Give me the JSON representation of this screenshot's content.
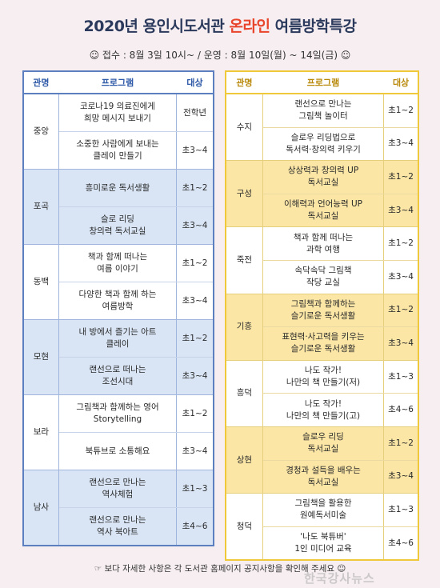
{
  "title": {
    "part1": "2020년 용인시도서관 ",
    "highlight": "온라인",
    "part2": " 여름방학특강"
  },
  "subtitle": "☺ 접수 : 8월 3일 10시~ / 운영 : 8월 10일(월) ~ 14일(금) ☺",
  "headers": {
    "library": "관명",
    "program": "프로그램",
    "target": "대상"
  },
  "left": [
    {
      "lib": "중앙",
      "programs": [
        {
          "name": "코로나19 의료진에게\n희망 메시지 보내기",
          "target": "전학년"
        },
        {
          "name": "소중한 사람에게 보내는\n클레이 만들기",
          "target": "초3~4"
        }
      ]
    },
    {
      "lib": "포곡",
      "programs": [
        {
          "name": "흥미로운 독서생활",
          "target": "초1~2"
        },
        {
          "name": "슬로 리딩\n창의력 독서교실",
          "target": "초3~4"
        }
      ]
    },
    {
      "lib": "동백",
      "programs": [
        {
          "name": "책과 함께 떠나는\n여름 이야기",
          "target": "초1~2"
        },
        {
          "name": "다양한 책과 함께 하는\n여름방학",
          "target": "초3~4"
        }
      ]
    },
    {
      "lib": "모현",
      "programs": [
        {
          "name": "내 방에서 즐기는 아트\n클레이",
          "target": "초1~2"
        },
        {
          "name": "랜선으로 떠나는\n조선시대",
          "target": "초3~4"
        }
      ]
    },
    {
      "lib": "보라",
      "programs": [
        {
          "name": "그림책과 함께하는 영어\nStorytelling",
          "target": "초1~2"
        },
        {
          "name": "북튜브로 소통해요",
          "target": "초3~4"
        }
      ]
    },
    {
      "lib": "남사",
      "programs": [
        {
          "name": "랜선으로 만나는\n역사체험",
          "target": "초1~3"
        },
        {
          "name": "랜선으로 만나는\n역사 북아트",
          "target": "초4~6"
        }
      ]
    }
  ],
  "right": [
    {
      "lib": "수지",
      "programs": [
        {
          "name": "랜선으로 만나는\n그림책 놀이터",
          "target": "초1~2"
        },
        {
          "name": "슬로우 리딩법으로\n독서력·창의력 키우기",
          "target": "초3~4"
        }
      ]
    },
    {
      "lib": "구성",
      "programs": [
        {
          "name": "상상력과 창의력 UP\n독서교실",
          "target": "초1~2"
        },
        {
          "name": "이해력과 언어능력 UP\n독서교실",
          "target": "초3~4"
        }
      ]
    },
    {
      "lib": "죽전",
      "programs": [
        {
          "name": "책과 함께 떠나는\n과학 여행",
          "target": "초1~2"
        },
        {
          "name": "속닥속닥 그림책\n작당 교실",
          "target": "초3~4"
        }
      ]
    },
    {
      "lib": "기흥",
      "programs": [
        {
          "name": "그림책과 함께하는\n슬기로운 독서생활",
          "target": "초1~2"
        },
        {
          "name": "표현력·사고력을 키우는\n슬기로운 독서생활",
          "target": "초3~4"
        }
      ]
    },
    {
      "lib": "흥덕",
      "programs": [
        {
          "name": "나도 작가!\n나만의 책 만들기(저)",
          "target": "초1~3"
        },
        {
          "name": "나도 작가!\n나만의 책 만들기(고)",
          "target": "초4~6"
        }
      ]
    },
    {
      "lib": "상현",
      "programs": [
        {
          "name": "슬로우 리딩\n독서교실",
          "target": "초1~2"
        },
        {
          "name": "경청과 설득을 배우는\n독서교실",
          "target": "초3~4"
        }
      ]
    },
    {
      "lib": "청덕",
      "programs": [
        {
          "name": "그림책을 활용한\n원예독서미술",
          "target": "초1~3"
        },
        {
          "name": "'나도 북튜버'\n1인 미디어 교육",
          "target": "초4~6"
        }
      ]
    }
  ],
  "footer": "☞ 보다 자세한 사항은 각 도서관 홈페이지 공지사항을 확인해 주세요 ☺",
  "watermark": "한국강사뉴스"
}
